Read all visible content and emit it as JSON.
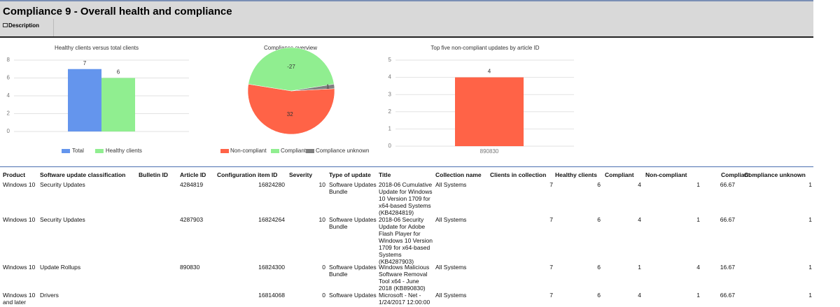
{
  "header": {
    "title": "Compliance 9 - Overall health and compliance",
    "description": "Description"
  },
  "chart_data": [
    {
      "type": "bar",
      "title": "Healthy clients versus total clients",
      "categories": [
        null
      ],
      "series": [
        {
          "name": "Total",
          "color": "#6495ed",
          "values": [
            7
          ]
        },
        {
          "name": "Healthy clients",
          "color": "#90ee90",
          "values": [
            6
          ]
        }
      ],
      "ylim": [
        0,
        8
      ],
      "yticks": [
        0,
        2,
        4,
        6,
        8
      ],
      "grid": true,
      "legend": "bottom"
    },
    {
      "type": "pie",
      "title": "Compliance overview",
      "categories": [
        "Non-compliant",
        "Compliant",
        "Compliance unknown"
      ],
      "values": [
        32,
        -27,
        1
      ],
      "colors": [
        "#ff6347",
        "#90ee90",
        "#808080"
      ],
      "legend": "bottom"
    },
    {
      "type": "bar",
      "title": "Top five non-compliant updates by article ID",
      "categories": [
        "890830"
      ],
      "series": [
        {
          "name": "Non-compliant",
          "color": "#ff6347",
          "values": [
            4
          ]
        }
      ],
      "ylim": [
        0,
        5
      ],
      "yticks": [
        0,
        1,
        2,
        3,
        4,
        5
      ],
      "grid": true
    }
  ],
  "table": {
    "columns": [
      "Product",
      "Software update classification",
      "Bulletin ID",
      "Article ID",
      "Configuration item ID",
      "Severity",
      "Type of update",
      "Title",
      "Collection name",
      "Clients in collection",
      "Healthy clients",
      "Compliant",
      "Non-compliant",
      "Compliant",
      "Compliance unknown"
    ],
    "rows": [
      [
        "Windows 10",
        "Security Updates",
        null,
        "4284819",
        "16824280",
        "10",
        "Software Updates Bundle",
        "2018-06 Cumulative Update for Windows 10 Version 1709 for x64-based Systems (KB4284819)",
        "All Systems",
        "7",
        "6",
        "4",
        "1",
        "66.67",
        "1"
      ],
      [
        "Windows 10",
        "Security Updates",
        null,
        "4287903",
        "16824264",
        "10",
        "Software Updates Bundle",
        "2018-06 Security Update for Adobe Flash Player for Windows 10 Version 1709 for x64-based Systems (KB4287903)",
        "All Systems",
        "7",
        "6",
        "4",
        "1",
        "66.67",
        "1"
      ],
      [
        "Windows 10",
        "Update Rollups",
        null,
        "890830",
        "16824300",
        "0",
        "Software Updates Bundle",
        "Windows Malicious Software Removal Tool x64 - June 2018 (KB890830)",
        "All Systems",
        "7",
        "6",
        "1",
        "4",
        "16.67",
        "1"
      ],
      [
        "Windows 10 and later",
        "Drivers",
        null,
        null,
        "16814068",
        "0",
        "Software Updates",
        "Microsoft - Net - 1/24/2017 12:00:00",
        "All Systems",
        "7",
        "6",
        "4",
        "1",
        "66.67",
        "1"
      ]
    ]
  }
}
